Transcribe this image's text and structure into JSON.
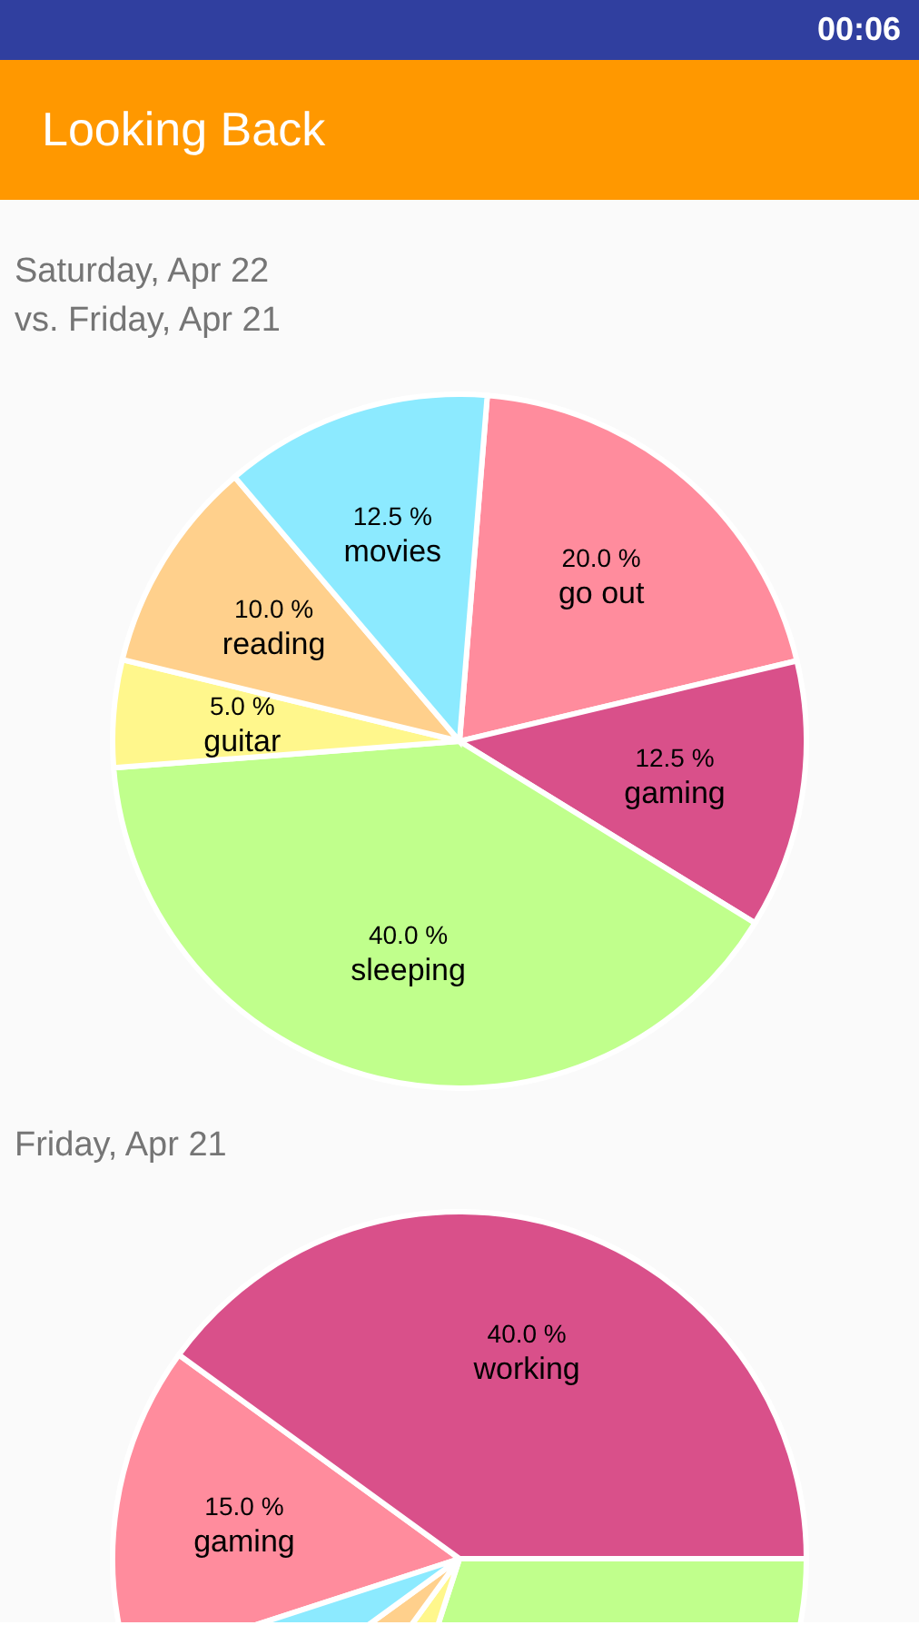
{
  "chart_data": [
    {
      "type": "pie",
      "title": "Looking Back",
      "subtitle": "Saturday, Apr 22\nvs. Friday, Apr 21",
      "annotations": [
        "00:06"
      ],
      "categories": [
        "go out",
        "gaming",
        "sleeping",
        "guitar",
        "reading",
        "movies"
      ],
      "values": [
        20,
        12.5,
        40,
        5,
        10,
        12.5
      ],
      "colors": [
        "#ff8c9d",
        "#d9508a",
        "#c0ff8c",
        "#fff78c",
        "#ffd08c",
        "#8ceaff"
      ],
      "value_labels": [
        "20.0 %",
        "12.5 %",
        "40.0 %",
        "5.0 %",
        "10.0 %",
        "12.5 %"
      ]
    },
    {
      "type": "pie",
      "title": "Friday, Apr 21",
      "categories": [
        "gaming",
        "working",
        null,
        null,
        null,
        null
      ],
      "values": [
        15,
        40,
        30,
        5,
        5,
        5
      ],
      "colors": [
        "#ff8c9d",
        "#d9508a",
        "#c0ff8c",
        "#fff78c",
        "#ffd08c",
        "#8ceaff"
      ],
      "value_labels": [
        "15.0 %",
        "40.0 %",
        null,
        null,
        null,
        null
      ]
    }
  ]
}
